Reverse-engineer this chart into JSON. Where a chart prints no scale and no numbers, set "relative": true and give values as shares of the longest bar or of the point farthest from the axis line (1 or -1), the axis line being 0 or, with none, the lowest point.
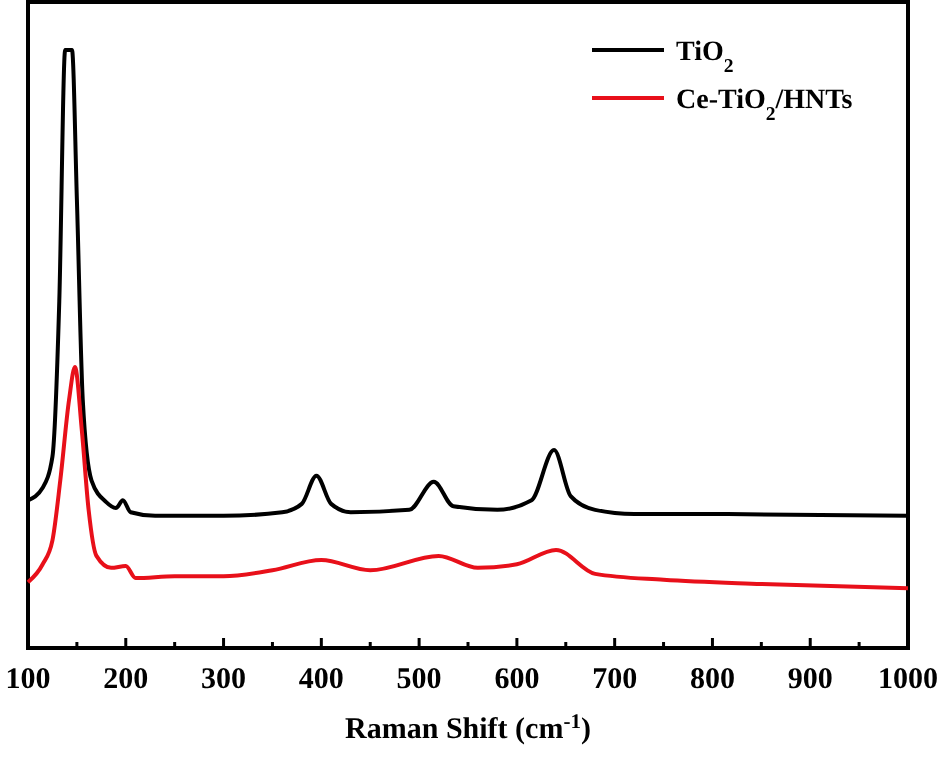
{
  "chart_data": {
    "type": "line",
    "relative": true,
    "xlabel": "Raman Shift (cm$^{-1}$)",
    "xlim": [
      100,
      1000
    ],
    "xticks": [
      100,
      {
        "value": 150,
        "label": null
      },
      200,
      {
        "value": 250,
        "label": null
      },
      300,
      {
        "value": 350,
        "label": null
      },
      400,
      {
        "value": 450,
        "label": null
      },
      500,
      {
        "value": 550,
        "label": null
      },
      600,
      {
        "value": 650,
        "label": null
      },
      700,
      {
        "value": 750,
        "label": null
      },
      800,
      {
        "value": 850,
        "label": null
      },
      900,
      {
        "value": 950,
        "label": null
      },
      1000
    ],
    "tick_labels": "x",
    "legend": "top right",
    "grid": false,
    "marker": "none",
    "line_style": "solid",
    "series": [
      {
        "name": "TiO$_{2}$",
        "color": "#000000",
        "x": [
          100,
          115,
          125,
          132,
          138,
          145,
          150,
          156,
          165,
          180,
          190,
          197,
          205,
          230,
          300,
          360,
          380,
          395,
          410,
          430,
          490,
          515,
          535,
          580,
          615,
          638,
          655,
          680,
          720,
          800,
          1000
        ],
        "values": [
          0.247,
          0.268,
          0.32,
          0.58,
          1.0,
          1.0,
          0.75,
          0.415,
          0.28,
          0.244,
          0.234,
          0.247,
          0.227,
          0.221,
          0.221,
          0.227,
          0.241,
          0.288,
          0.241,
          0.227,
          0.231,
          0.278,
          0.237,
          0.231,
          0.247,
          0.331,
          0.254,
          0.231,
          0.224,
          0.224,
          0.221
        ]
      },
      {
        "name": "Ce-TiO$_{2}$/HNTs",
        "color": "#e8101a",
        "x": [
          100,
          115,
          125,
          133,
          142,
          148,
          155,
          162,
          170,
          185,
          200,
          210,
          250,
          300,
          350,
          400,
          450,
          520,
          560,
          600,
          640,
          680,
          750,
          850,
          1000
        ],
        "values": [
          0.11,
          0.14,
          0.18,
          0.28,
          0.415,
          0.47,
          0.365,
          0.231,
          0.154,
          0.134,
          0.137,
          0.117,
          0.12,
          0.12,
          0.13,
          0.147,
          0.13,
          0.154,
          0.134,
          0.14,
          0.164,
          0.124,
          0.114,
          0.107,
          0.1
        ]
      }
    ]
  }
}
